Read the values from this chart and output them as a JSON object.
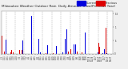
{
  "bar_color_current": "#0000dd",
  "bar_color_previous": "#dd0000",
  "background_color": "#f0f0f0",
  "plot_bg_color": "#ffffff",
  "num_days": 365,
  "ylim": [
    0,
    1.6
  ],
  "yticks": [
    0.0,
    0.5,
    1.0,
    1.5
  ],
  "ytick_labels": [
    "0",
    ".5",
    "1",
    "1.5"
  ],
  "grid_color": "#999999",
  "title_fontsize": 3.0,
  "tick_fontsize": 2.0,
  "legend_fontsize": 2.5,
  "title_text": "Milwaukee Weather Outdoor Rain  Daily Amount  (Past/Previous Year)",
  "legend_current_label": "Current",
  "legend_previous_label": "Previous"
}
